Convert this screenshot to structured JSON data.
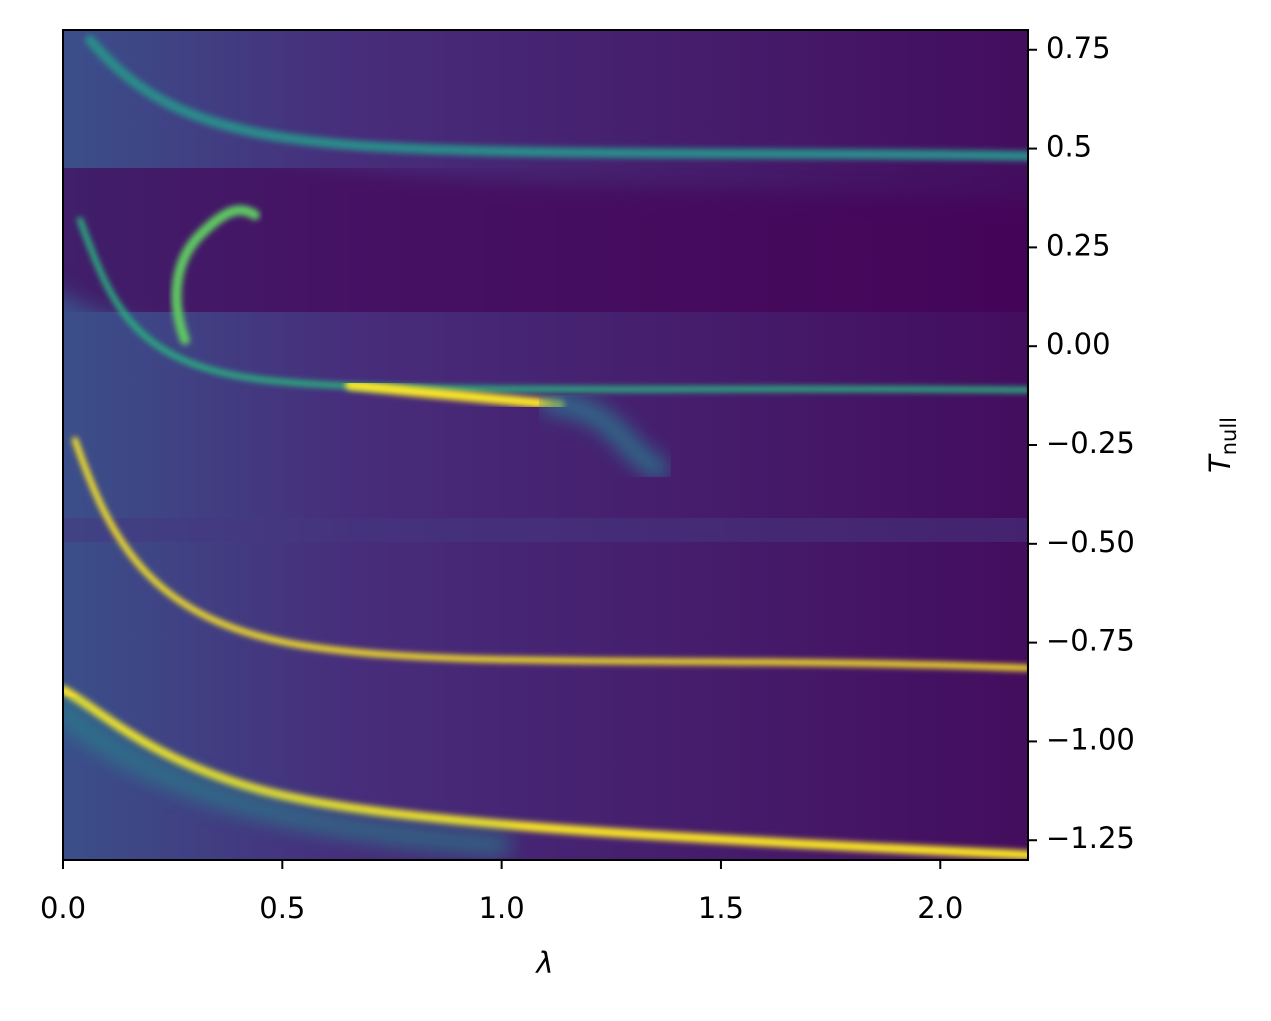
{
  "chart_data": {
    "type": "heatmap",
    "xlabel": "λ",
    "ylabel": "T",
    "ylabel_sub": "null",
    "xlim": [
      0,
      2.2
    ],
    "ylim": [
      -1.3,
      0.8
    ],
    "xticks": [
      {
        "value": 0,
        "label": "0.0"
      },
      0.5,
      {
        "value": 1,
        "label": "1.0"
      },
      1.5,
      {
        "value": 2,
        "label": "2.0"
      }
    ],
    "yticks": [
      0.75,
      0.5,
      0.25,
      {
        "value": 0,
        "label": "0.00"
      },
      {
        "value": -0.25,
        "label": "−0.25"
      },
      {
        "value": -0.5,
        "label": "−0.50"
      },
      {
        "value": -0.75,
        "label": "−0.75"
      },
      {
        "value": -1,
        "label": "−1.00"
      },
      {
        "value": -1.25,
        "label": "−1.25"
      }
    ],
    "yaxis_side": "right",
    "colormap": "viridis"
  }
}
